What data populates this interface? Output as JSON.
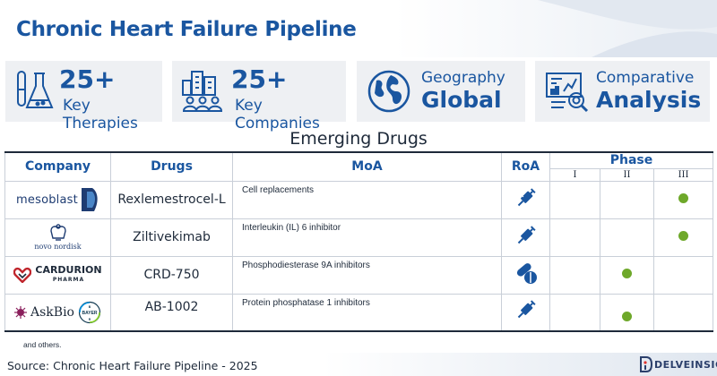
{
  "header": {
    "title": "Chronic Heart Failure Pipeline"
  },
  "stats": [
    {
      "value": "25+",
      "label": "Key Therapies",
      "icon": "flask-icon"
    },
    {
      "value": "25+",
      "label": "Key Companies",
      "icon": "buildings-people-icon"
    },
    {
      "label_top": "Geography",
      "value": "Global",
      "icon": "globe-icon"
    },
    {
      "label_top": "Comparative",
      "value": "Analysis",
      "icon": "analysis-dashboard-icon"
    }
  ],
  "section": {
    "title": "Emerging Drugs"
  },
  "table": {
    "headers": {
      "company": "Company",
      "drugs": "Drugs",
      "moa": "MoA",
      "roa": "RoA",
      "phase": "Phase"
    },
    "phases": [
      "I",
      "II",
      "III"
    ],
    "rows": [
      {
        "company": "mesoblast",
        "drug": "Rexlemestrocel-L",
        "moa": "Cell replacements",
        "roa": "syringe-icon",
        "phase": "III"
      },
      {
        "company": "novo nordisk",
        "drug": "Ziltivekimab",
        "moa": "Interleukin (IL) 6 inhibitor",
        "roa": "syringe-icon",
        "phase": "III"
      },
      {
        "company": "CARDURION",
        "company_sub": "PHARMA",
        "drug": "CRD-750",
        "moa": "Phosphodiesterase 9A inhibitors",
        "roa": "pills-icon",
        "phase": "II"
      },
      {
        "company": "AskBio",
        "company_partner": "BAYER",
        "drug": "AB-1002",
        "moa": "Protein phosphatase 1 inhibitors",
        "roa": "syringe-icon",
        "phase": "II"
      }
    ],
    "footnote": "and others."
  },
  "footer": {
    "source": "Source: Chronic Heart Failure Pipeline - 2025",
    "brand": "DELVEINSIGHT"
  },
  "colors": {
    "accent": "#1a56a0",
    "dot": "#6ea82a",
    "card_bg": "#eef0f3"
  }
}
